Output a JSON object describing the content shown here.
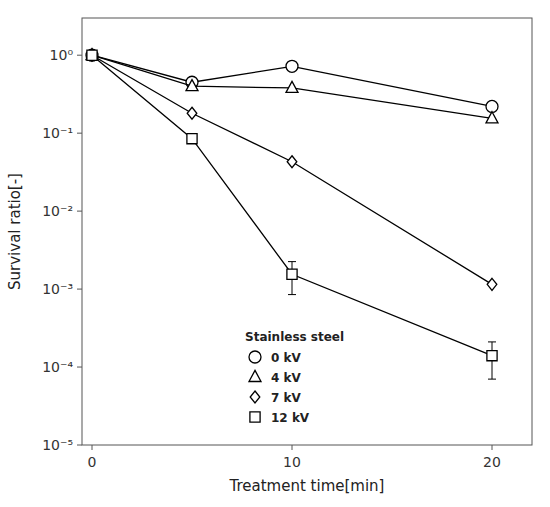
{
  "chart_data": {
    "type": "line",
    "title": "",
    "x_label": "Treatment time[min]",
    "y_label": "Survival ratio[-]",
    "x": [
      0,
      5,
      10,
      20
    ],
    "series": [
      {
        "name": "0 kV",
        "color": "#000000",
        "marker": "circle",
        "values": [
          1.0,
          0.45,
          0.72,
          0.22
        ],
        "yerr_lo": [
          null,
          null,
          null,
          null
        ],
        "yerr_hi": [
          null,
          null,
          null,
          null
        ]
      },
      {
        "name": "4 kV",
        "color": "#000000",
        "marker": "triangle",
        "values": [
          1.0,
          0.4,
          0.38,
          0.155
        ],
        "yerr_lo": [
          null,
          null,
          null,
          null
        ],
        "yerr_hi": [
          null,
          null,
          null,
          null
        ]
      },
      {
        "name": "7 kV",
        "color": "#000000",
        "marker": "diamond",
        "values": [
          1.0,
          0.18,
          0.043,
          0.00115
        ],
        "yerr_lo": [
          null,
          null,
          null,
          null
        ],
        "yerr_hi": [
          null,
          null,
          null,
          null
        ]
      },
      {
        "name": "12 kV",
        "color": "#000000",
        "marker": "square",
        "values": [
          1.0,
          0.085,
          0.00155,
          0.00014
        ],
        "yerr_lo": [
          null,
          null,
          0.0007,
          7e-05
        ],
        "yerr_hi": [
          null,
          null,
          0.0007,
          7e-05
        ]
      }
    ],
    "legend_title": "Stainless steel",
    "legend": "lower center",
    "log": "y",
    "grid": false,
    "xlim": [
      -0.5,
      22
    ],
    "ylim": [
      1e-05,
      3
    ],
    "xticks": [
      0,
      10,
      20
    ],
    "yticks": [
      {
        "value": 1e-05,
        "label": "10⁻⁵"
      },
      {
        "value": 0.0001,
        "label": "10⁻⁴"
      },
      {
        "value": 0.001,
        "label": "10⁻³"
      },
      {
        "value": 0.01,
        "label": "10⁻²"
      },
      {
        "value": 0.1,
        "label": "10⁻¹"
      },
      {
        "value": 1,
        "label": "10⁰"
      }
    ]
  }
}
